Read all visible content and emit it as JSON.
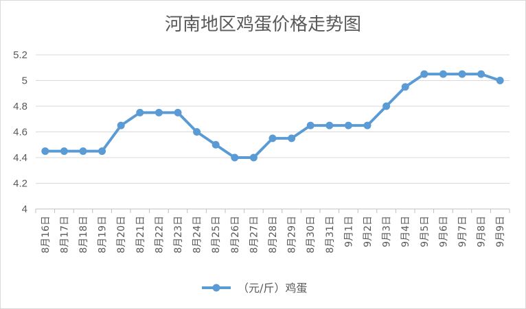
{
  "chart_data": {
    "type": "line",
    "title": "河南地区鸡蛋价格走势图",
    "xlabel": "",
    "ylabel": "",
    "categories": [
      "8月16日",
      "8月17日",
      "8月18日",
      "8月19日",
      "8月20日",
      "8月21日",
      "8月22日",
      "8月23日",
      "8月24日",
      "8月25日",
      "8月26日",
      "8月27日",
      "8月28日",
      "8月29日",
      "8月30日",
      "8月31日",
      "9月1日",
      "9月2日",
      "9月3日",
      "9月4日",
      "9月5日",
      "9月6日",
      "9月7日",
      "9月8日",
      "9月9日"
    ],
    "series": [
      {
        "name": "（元/斤）鸡蛋",
        "color": "#5b9bd5",
        "values": [
          4.45,
          4.45,
          4.45,
          4.45,
          4.65,
          4.75,
          4.75,
          4.75,
          4.6,
          4.5,
          4.4,
          4.4,
          4.55,
          4.55,
          4.65,
          4.65,
          4.65,
          4.65,
          4.8,
          4.95,
          5.05,
          5.05,
          5.05,
          5.05,
          5.0
        ]
      }
    ],
    "ylim": [
      4,
      5.2
    ],
    "yticks": [
      "4",
      "4.2",
      "4.4",
      "4.6",
      "4.8",
      "5",
      "5.2"
    ],
    "ytick_values": [
      4,
      4.2,
      4.4,
      4.6,
      4.8,
      5,
      5.2
    ],
    "grid": true,
    "legend_position": "bottom"
  }
}
